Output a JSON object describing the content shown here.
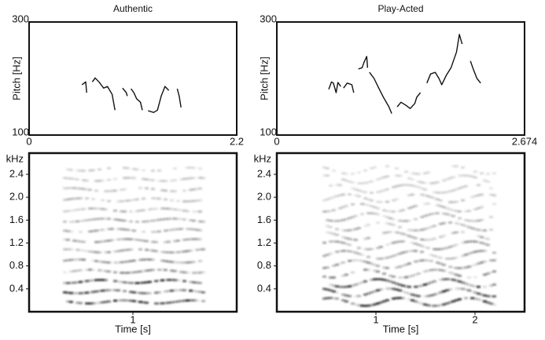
{
  "chart_data": [
    {
      "type": "line",
      "title": "Authentic",
      "y_label": "Pitch [Hz]",
      "xlim": [
        0,
        2.2
      ],
      "xticks": [
        0,
        2.2
      ],
      "ylim": [
        100,
        300
      ],
      "yticks": [
        100,
        300
      ],
      "color": "#111111",
      "x": [
        0.56,
        0.6,
        0.61,
        null,
        0.67,
        0.7,
        0.74,
        0.79,
        0.83,
        0.88,
        0.91,
        null,
        0.99,
        1.03,
        1.04,
        null,
        1.08,
        1.11,
        1.14,
        1.18,
        1.2,
        null,
        1.26,
        1.32,
        1.36,
        1.4,
        1.44,
        1.48,
        null,
        1.57,
        1.59,
        1.61
      ],
      "values": [
        189,
        194,
        175,
        null,
        194,
        201,
        194,
        183,
        186,
        172,
        144,
        null,
        183,
        175,
        169,
        null,
        182,
        175,
        164,
        158,
        144,
        null,
        143,
        140,
        144,
        169,
        186,
        179,
        null,
        182,
        169,
        149
      ]
    },
    {
      "type": "line",
      "title": "Play-Acted",
      "y_label": "Pitch [Hz]",
      "xlim": [
        0,
        2.674
      ],
      "xticks": [
        0,
        2.674
      ],
      "ylim": [
        100,
        300
      ],
      "yticks": [
        100,
        300
      ],
      "color": "#111111",
      "x": [
        0.56,
        0.59,
        0.61,
        0.64,
        0.66,
        0.69,
        null,
        0.72,
        0.76,
        0.81,
        0.83,
        null,
        0.88,
        0.92,
        0.94,
        0.97,
        0.98,
        null,
        1.0,
        1.05,
        1.1,
        1.15,
        1.21,
        1.24,
        null,
        1.3,
        1.34,
        1.39,
        1.44,
        1.49,
        1.51,
        1.55,
        null,
        1.62,
        1.66,
        1.71,
        1.75,
        1.78,
        1.83,
        1.88,
        1.94,
        1.97,
        2.0,
        null,
        2.09,
        2.12,
        2.16,
        2.2
      ],
      "values": [
        181,
        194,
        192,
        175,
        193,
        186,
        null,
        183,
        192,
        189,
        175,
        null,
        217,
        219,
        228,
        239,
        219,
        null,
        211,
        200,
        183,
        167,
        150,
        138,
        null,
        150,
        158,
        153,
        147,
        156,
        167,
        175,
        null,
        192,
        208,
        211,
        200,
        189,
        206,
        219,
        247,
        278,
        261,
        null,
        231,
        217,
        200,
        192
      ]
    },
    {
      "type": "spectrogram",
      "y_label": "kHz",
      "x_label": "Time [s]",
      "xlim": [
        0,
        2.0
      ],
      "xticks": [
        1
      ],
      "ylim": [
        0,
        2.77
      ],
      "yticks": [
        0.4,
        0.8,
        1.2,
        1.6,
        {
          "value": 2,
          "label": "2.0"
        },
        2.4
      ]
    },
    {
      "type": "spectrogram",
      "y_label": "kHz",
      "x_label": "Time [s]",
      "xlim": [
        0,
        2.5
      ],
      "xticks": [
        1,
        2
      ],
      "ylim": [
        0,
        2.77
      ],
      "yticks": [
        0.4,
        0.8,
        1.2,
        1.6,
        {
          "value": 2,
          "label": "2.0"
        },
        2.4
      ]
    }
  ]
}
